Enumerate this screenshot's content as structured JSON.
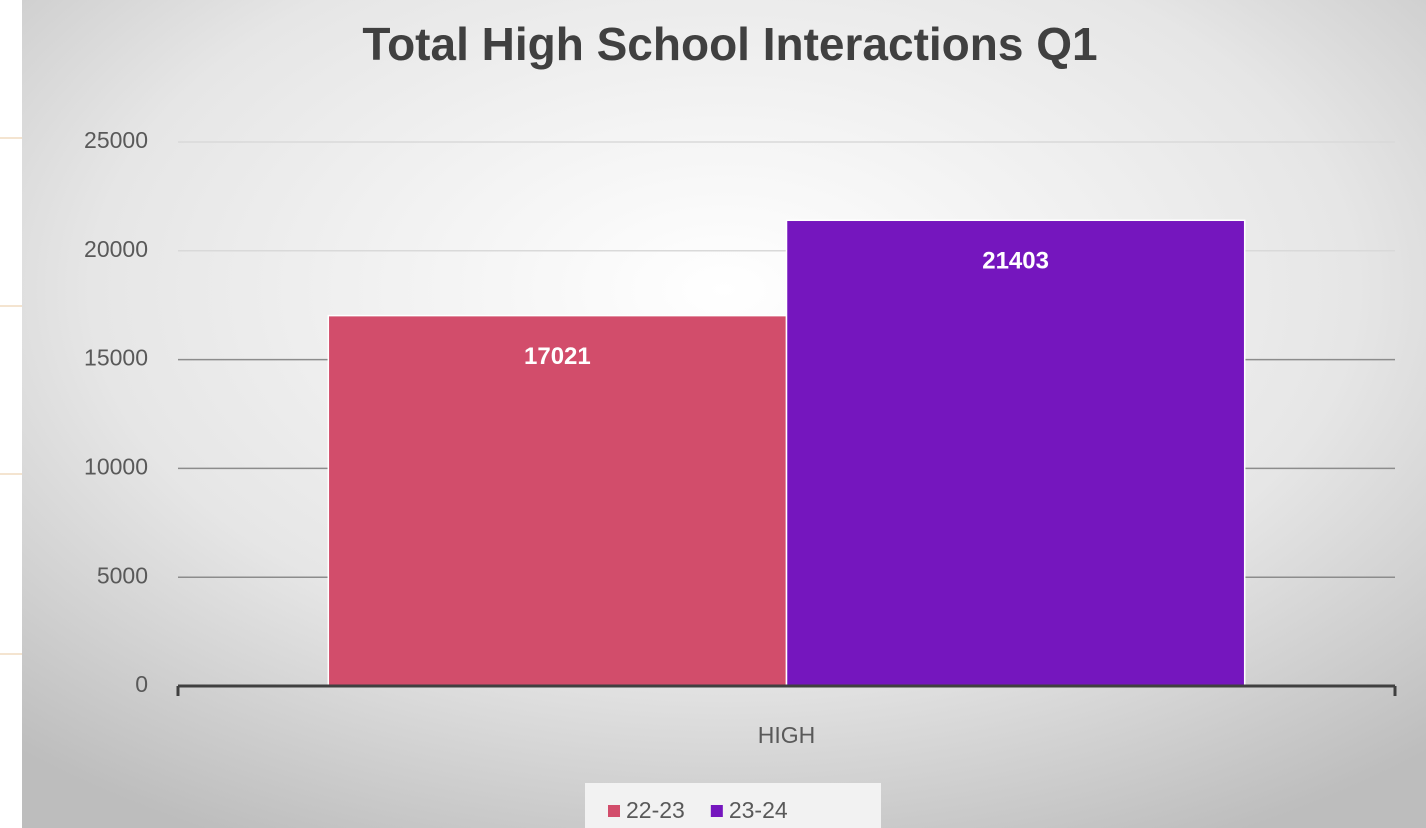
{
  "chart_data": {
    "type": "bar",
    "title": "Total High School Interactions Q1",
    "categories": [
      "HIGH"
    ],
    "series": [
      {
        "name": "22-23",
        "color": "#d24d6b",
        "values": [
          17021
        ]
      },
      {
        "name": "23-24",
        "color": "#7516be",
        "values": [
          21403
        ]
      }
    ],
    "ylim": [
      0,
      25000
    ],
    "yticks": [
      0,
      5000,
      10000,
      15000,
      20000,
      25000
    ],
    "grid": true,
    "legend": "bottom"
  }
}
